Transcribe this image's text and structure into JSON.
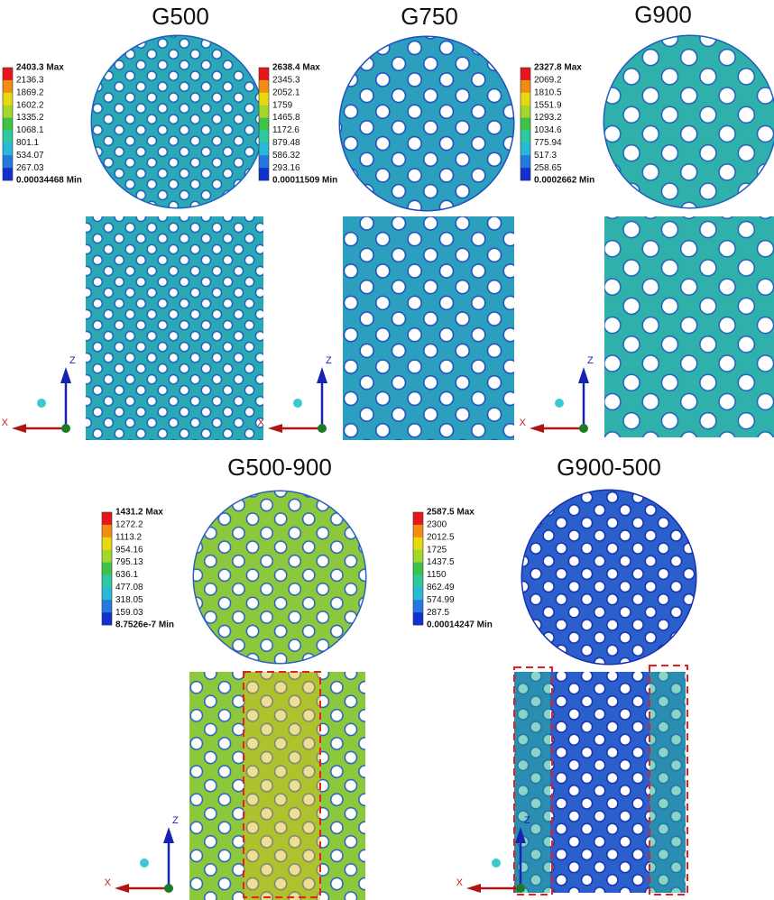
{
  "panels": [
    {
      "title": "G500",
      "legend": [
        "2403.3 Max",
        "2136.3",
        "1869.2",
        "1602.2",
        "1335.2",
        "1068.1",
        "801.1",
        "534.07",
        "267.03",
        "0.00034468 Min"
      ]
    },
    {
      "title": "G750",
      "legend": [
        "2638.4 Max",
        "2345.3",
        "2052.1",
        "1759",
        "1465.8",
        "1172.6",
        "879.48",
        "586.32",
        "293.16",
        "0.00011509 Min"
      ]
    },
    {
      "title": "G900",
      "legend": [
        "2327.8 Max",
        "2069.2",
        "1810.5",
        "1551.9",
        "1293.2",
        "1034.6",
        "775.94",
        "517.3",
        "258.65",
        "0.0002662 Min"
      ]
    },
    {
      "title": "G500-900",
      "legend": [
        "1431.2 Max",
        "1272.2",
        "1113.2",
        "954.16",
        "795.13",
        "636.1",
        "477.08",
        "318.05",
        "159.03",
        "8.7526e-7 Min"
      ]
    },
    {
      "title": "G900-500",
      "legend": [
        "2587.5 Max",
        "2300",
        "2012.5",
        "1725",
        "1437.5",
        "1150",
        "862.49",
        "574.99",
        "287.5",
        "0.00014247 Min"
      ]
    }
  ],
  "axes": {
    "z": "Z",
    "x": "X"
  }
}
